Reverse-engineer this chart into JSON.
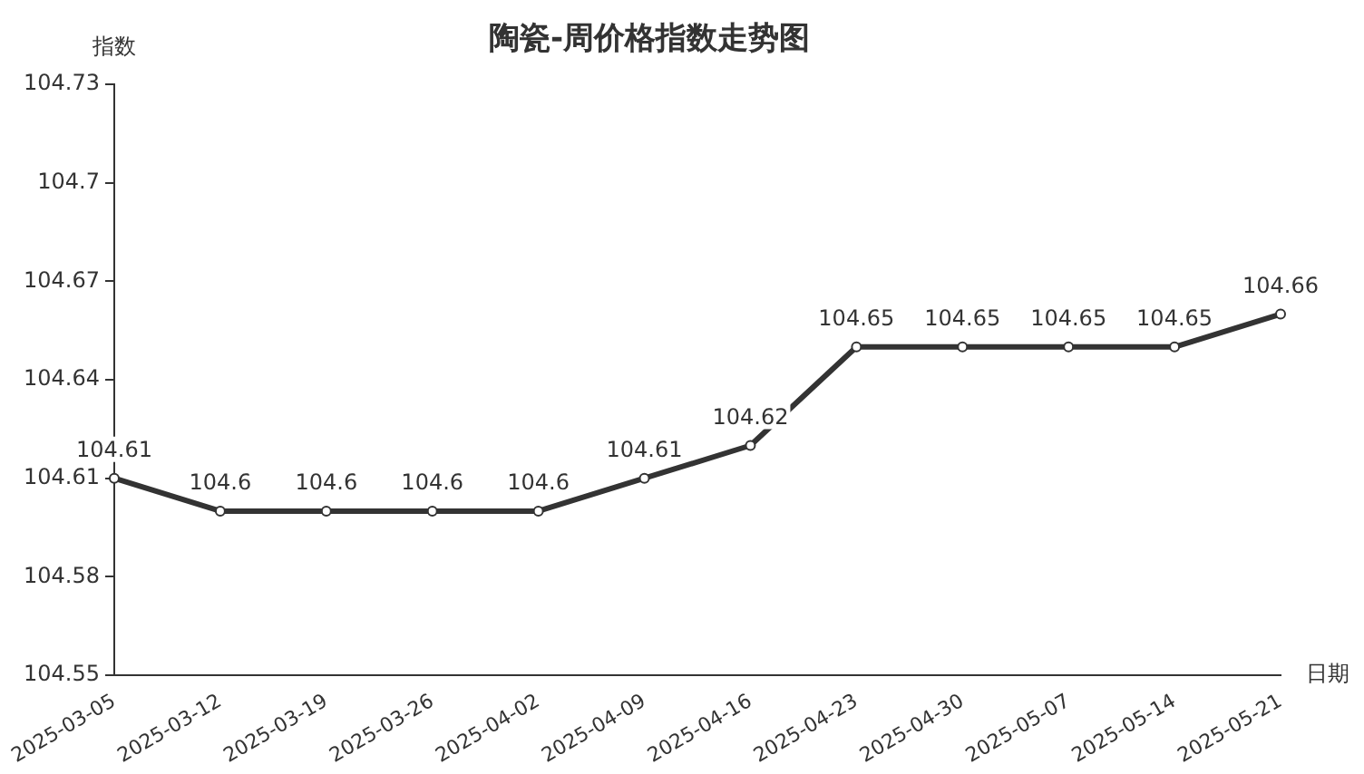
{
  "chart_data": {
    "type": "line",
    "title": "陶瓷-周价格指数走势图",
    "xlabel": "日期",
    "ylabel": "指数",
    "categories": [
      "2025-03-05",
      "2025-03-12",
      "2025-03-19",
      "2025-03-26",
      "2025-04-02",
      "2025-04-09",
      "2025-04-16",
      "2025-04-23",
      "2025-04-30",
      "2025-05-07",
      "2025-05-14",
      "2025-05-21"
    ],
    "series": [
      {
        "color": "#333333",
        "values": [
          104.61,
          104.6,
          104.6,
          104.6,
          104.6,
          104.61,
          104.62,
          104.65,
          104.65,
          104.65,
          104.65,
          104.66
        ]
      }
    ],
    "ylim": [
      104.55,
      104.73
    ],
    "yticks": [
      104.55,
      104.58,
      104.61,
      104.64,
      104.67,
      104.7,
      104.73
    ],
    "grid": false,
    "legend": false,
    "marker": "circle",
    "line_style": "solid",
    "data_labels": true
  }
}
